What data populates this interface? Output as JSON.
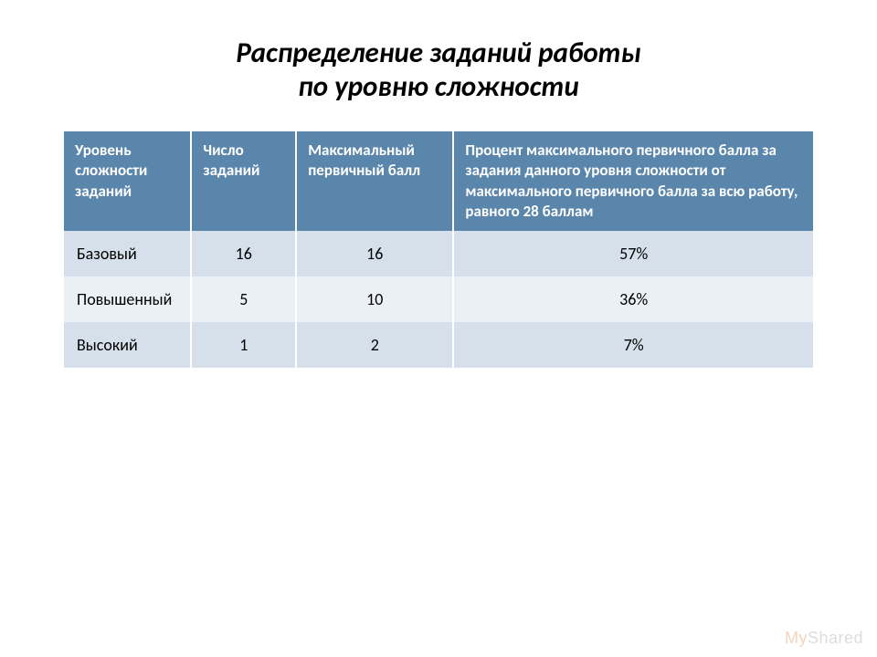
{
  "title_line1": "Распределение заданий работы",
  "title_line2": "по уровню сложности",
  "table": {
    "headers": {
      "level": "Уровень сложности заданий",
      "count": "Число заданий",
      "max": "Максимальный первичный балл",
      "percent": "Процент максимального первичного балла за задания данного уровня сложности от максимального первичного балла за всю работу, равного 28 баллам"
    },
    "rows": [
      {
        "level": "Базовый",
        "count": "16",
        "max": "16",
        "percent": "57%"
      },
      {
        "level": "Повышенный",
        "count": "5",
        "max": "10",
        "percent": "36%"
      },
      {
        "level": "Высокий",
        "count": "1",
        "max": "2",
        "percent": "7%"
      }
    ],
    "styling": {
      "header_bg": "#5a86ac",
      "header_text_color": "#ffffff",
      "row_odd_bg": "#d5e0ea",
      "row_even_bg": "#ebf0f5",
      "border_color": "#ffffff",
      "title_fontsize": 31,
      "header_fontsize": 17,
      "cell_fontsize": 18,
      "column_widths_pct": [
        17,
        14,
        21,
        48
      ],
      "column_align": [
        "left",
        "center",
        "center",
        "center"
      ]
    }
  },
  "watermark": {
    "prefix": "My",
    "text": "Shared"
  }
}
